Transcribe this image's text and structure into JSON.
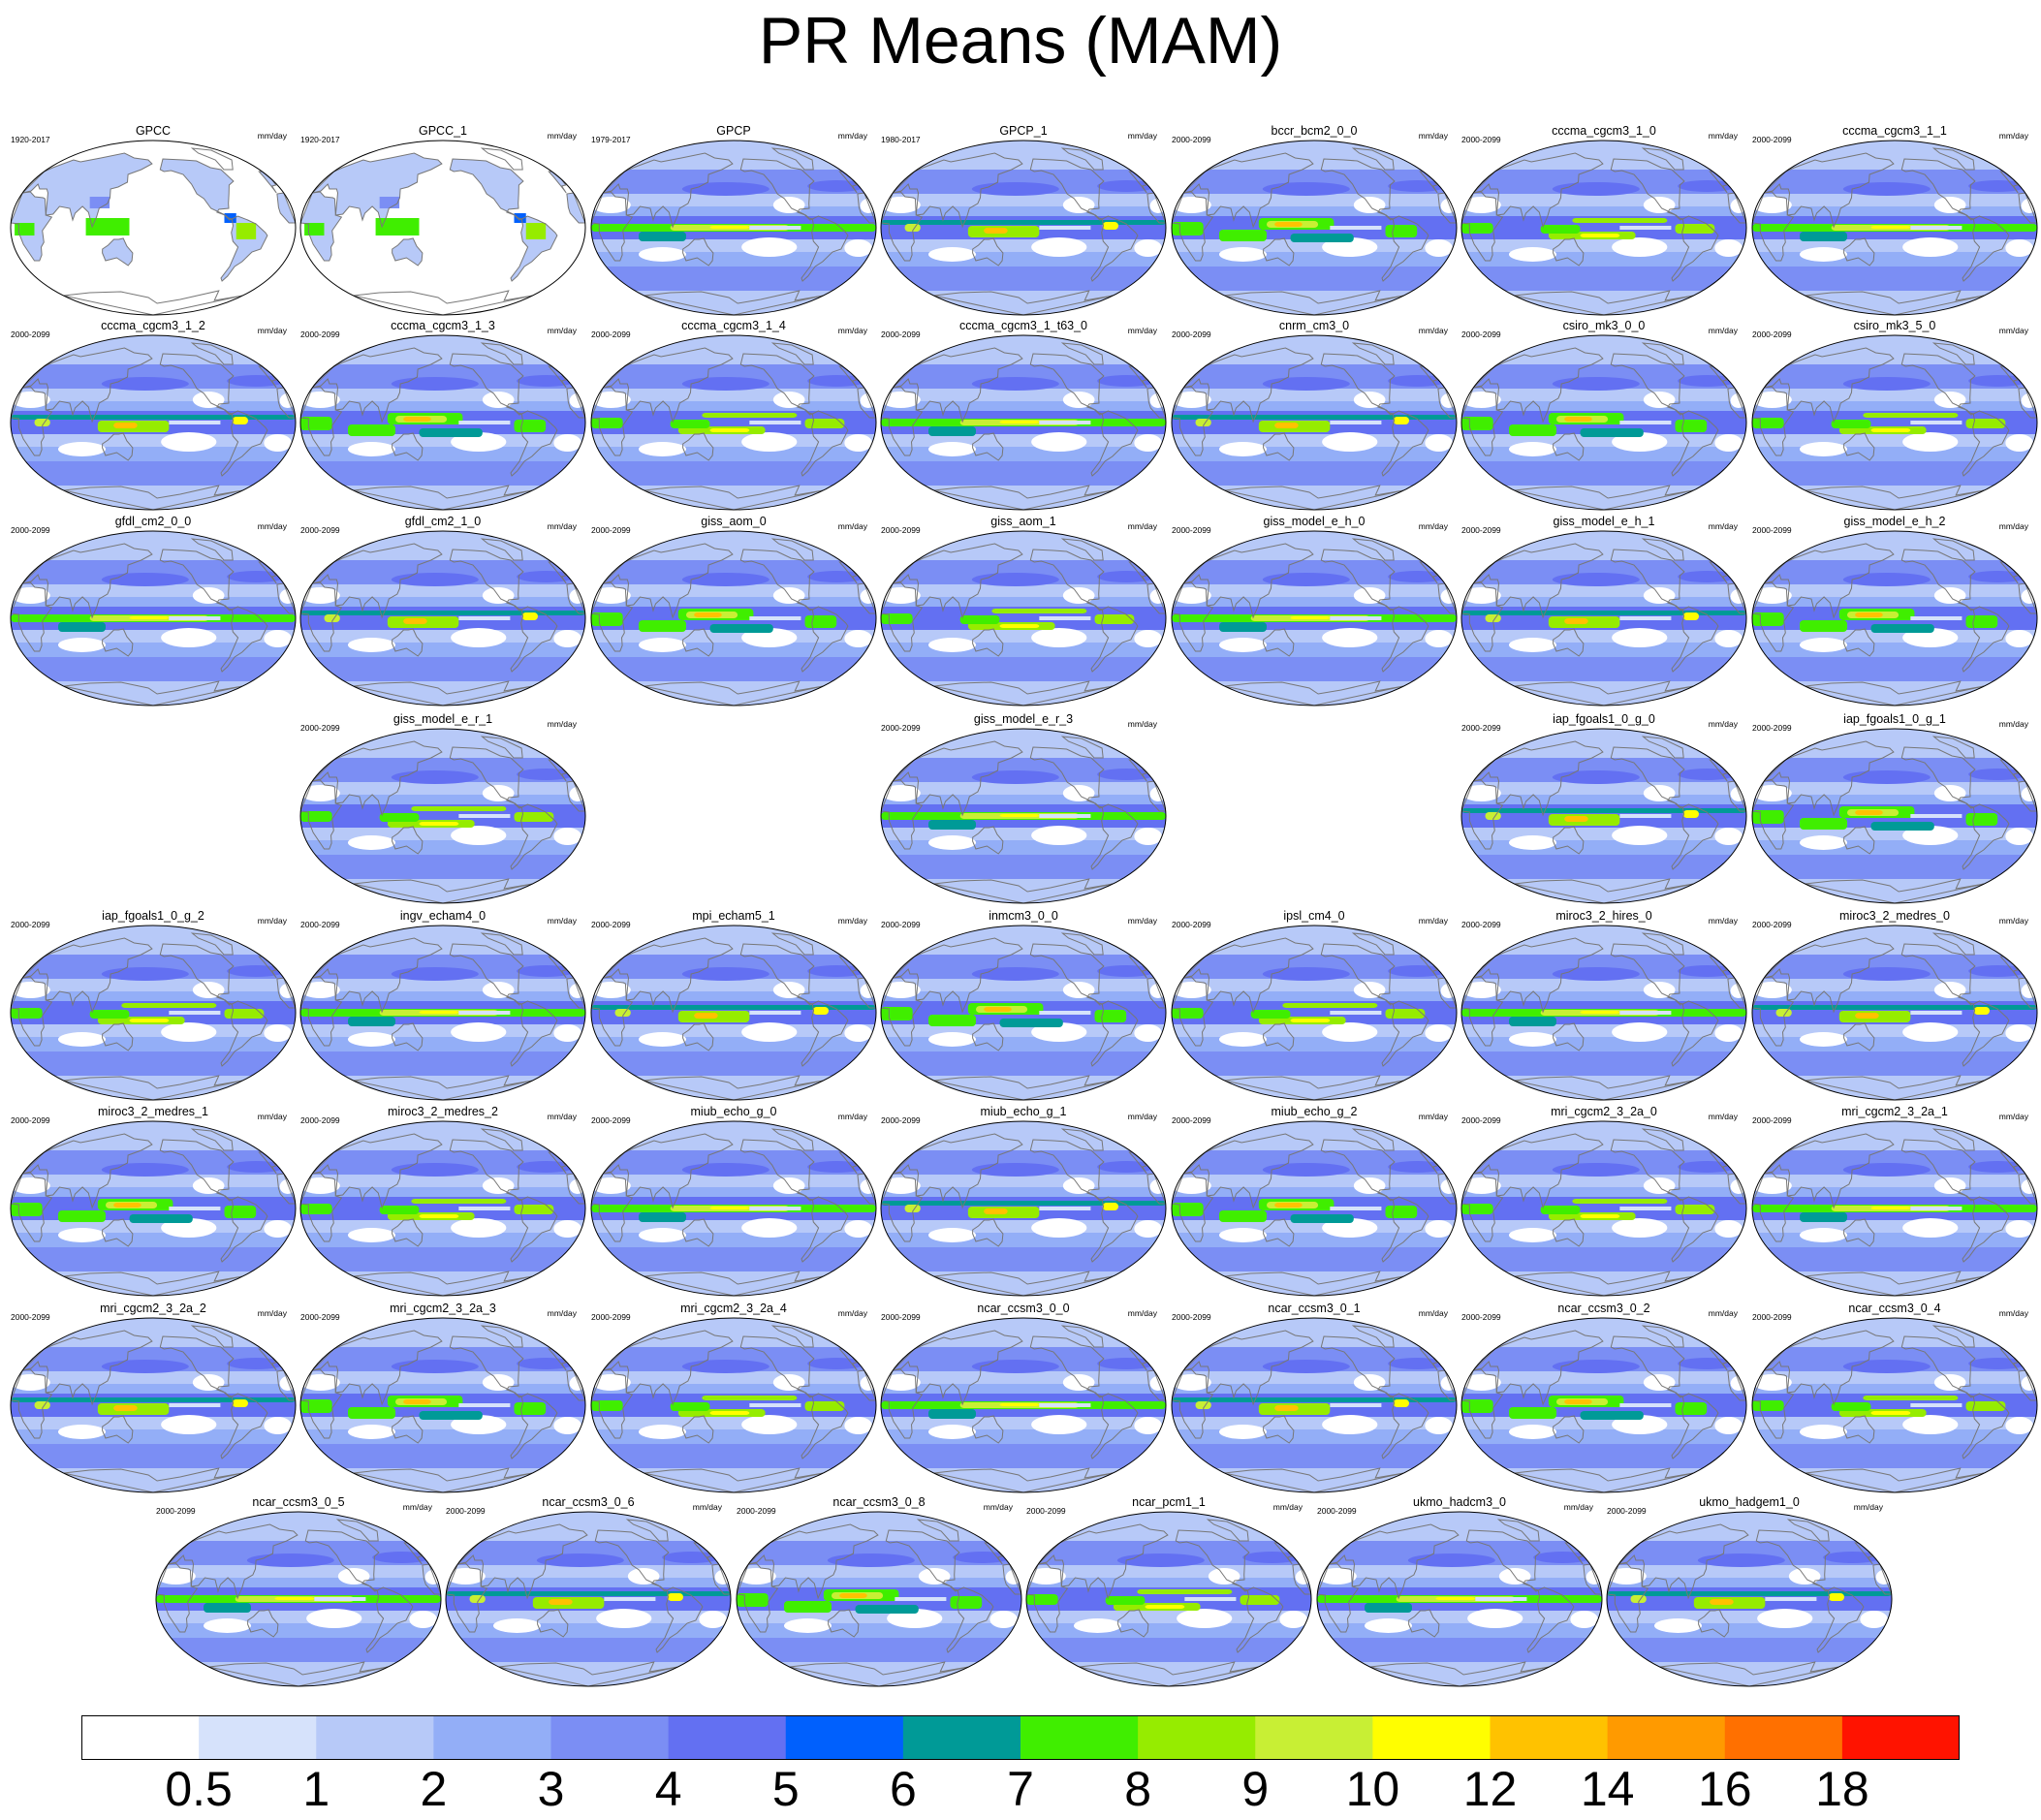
{
  "title": "PR Means (MAM)",
  "units": "mm/day",
  "colorbar": {
    "colors": [
      "#ffffff",
      "#d6e2fb",
      "#b7c9f8",
      "#93aef7",
      "#7b8ef4",
      "#6370f2",
      "#0060fd",
      "#009a97",
      "#40ee00",
      "#96ec00",
      "#c8ef34",
      "#fffe00",
      "#ffc200",
      "#ff9a00",
      "#ff7000",
      "#ff1300"
    ],
    "tick_labels": [
      "0.5",
      "1",
      "2",
      "3",
      "4",
      "5",
      "6",
      "7",
      "8",
      "9",
      "10",
      "12",
      "14",
      "16",
      "18"
    ]
  },
  "panels": [
    {
      "name": "GPCC",
      "period": "1920-2017"
    },
    {
      "name": "GPCC_1",
      "period": "1920-2017"
    },
    {
      "name": "GPCP",
      "period": "1979-2017"
    },
    {
      "name": "GPCP_1",
      "period": "1980-2017"
    },
    {
      "name": "bccr_bcm2_0_0",
      "period": "2000-2099"
    },
    {
      "name": "cccma_cgcm3_1_0",
      "period": "2000-2099"
    },
    {
      "name": "cccma_cgcm3_1_1",
      "period": "2000-2099"
    },
    {
      "name": "cccma_cgcm3_1_2",
      "period": "2000-2099"
    },
    {
      "name": "cccma_cgcm3_1_3",
      "period": "2000-2099"
    },
    {
      "name": "cccma_cgcm3_1_4",
      "period": "2000-2099"
    },
    {
      "name": "cccma_cgcm3_1_t63_0",
      "period": "2000-2099"
    },
    {
      "name": "cnrm_cm3_0",
      "period": "2000-2099"
    },
    {
      "name": "csiro_mk3_0_0",
      "period": "2000-2099"
    },
    {
      "name": "csiro_mk3_5_0",
      "period": "2000-2099"
    },
    {
      "name": "gfdl_cm2_0_0",
      "period": "2000-2099"
    },
    {
      "name": "gfdl_cm2_1_0",
      "period": "2000-2099"
    },
    {
      "name": "giss_aom_0",
      "period": "2000-2099"
    },
    {
      "name": "giss_aom_1",
      "period": "2000-2099"
    },
    {
      "name": "giss_model_e_h_0",
      "period": "2000-2099"
    },
    {
      "name": "giss_model_e_h_1",
      "period": "2000-2099"
    },
    {
      "name": "giss_model_e_h_2",
      "period": "2000-2099"
    },
    {
      "name": "giss_model_e_r_1",
      "period": "2000-2099"
    },
    {
      "name": "giss_model_e_r_3",
      "period": "2000-2099"
    },
    {
      "name": "iap_fgoals1_0_g_0",
      "period": "2000-2099"
    },
    {
      "name": "iap_fgoals1_0_g_1",
      "period": "2000-2099"
    },
    {
      "name": "iap_fgoals1_0_g_2",
      "period": "2000-2099"
    },
    {
      "name": "ingv_echam4_0",
      "period": "2000-2099"
    },
    {
      "name": "mpi_echam5_1",
      "period": "2000-2099"
    },
    {
      "name": "inmcm3_0_0",
      "period": "2000-2099"
    },
    {
      "name": "ipsl_cm4_0",
      "period": "2000-2099"
    },
    {
      "name": "miroc3_2_hires_0",
      "period": "2000-2099"
    },
    {
      "name": "miroc3_2_medres_0",
      "period": "2000-2099"
    },
    {
      "name": "miroc3_2_medres_1",
      "period": "2000-2099"
    },
    {
      "name": "miroc3_2_medres_2",
      "period": "2000-2099"
    },
    {
      "name": "miub_echo_g_0",
      "period": "2000-2099"
    },
    {
      "name": "miub_echo_g_1",
      "period": "2000-2099"
    },
    {
      "name": "miub_echo_g_2",
      "period": "2000-2099"
    },
    {
      "name": "mri_cgcm2_3_2a_0",
      "period": "2000-2099"
    },
    {
      "name": "mri_cgcm2_3_2a_1",
      "period": "2000-2099"
    },
    {
      "name": "mri_cgcm2_3_2a_2",
      "period": "2000-2099"
    },
    {
      "name": "mri_cgcm2_3_2a_3",
      "period": "2000-2099"
    },
    {
      "name": "mri_cgcm2_3_2a_4",
      "period": "2000-2099"
    },
    {
      "name": "ncar_ccsm3_0_0",
      "period": "2000-2099"
    },
    {
      "name": "ncar_ccsm3_0_1",
      "period": "2000-2099"
    },
    {
      "name": "ncar_ccsm3_0_2",
      "period": "2000-2099"
    },
    {
      "name": "ncar_ccsm3_0_4",
      "period": "2000-2099"
    },
    {
      "name": "ncar_ccsm3_0_5",
      "period": "2000-2099"
    },
    {
      "name": "ncar_ccsm3_0_6",
      "period": "2000-2099"
    },
    {
      "name": "ncar_ccsm3_0_8",
      "period": "2000-2099"
    },
    {
      "name": "ncar_pcm1_1",
      "period": "2000-2099"
    },
    {
      "name": "ukmo_hadcm3_0",
      "period": "2000-2099"
    },
    {
      "name": "ukmo_hadgem1_0",
      "period": "2000-2099"
    }
  ]
}
